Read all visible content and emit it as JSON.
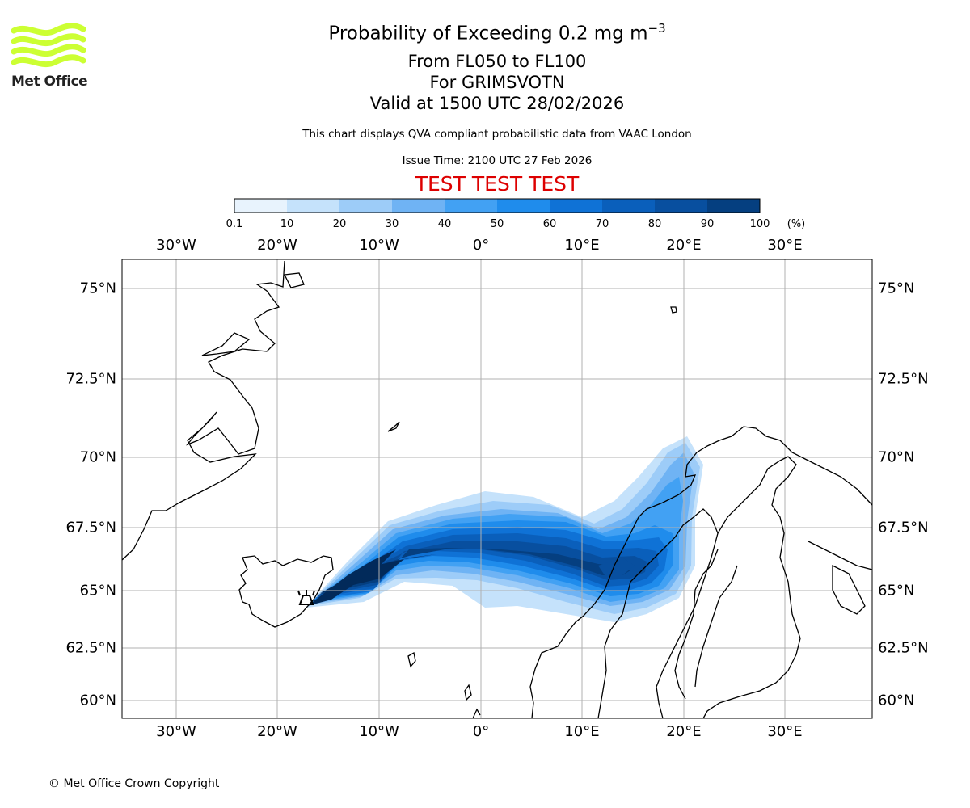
{
  "header": {
    "title": "Probability of Exceeding 0.2 mg m",
    "title_superscript": "−3",
    "line_levels": "From FL050 to FL100",
    "line_volcano": "For GRIMSVOTN",
    "line_valid": "Valid at 1500 UTC 28/02/2026",
    "description": "This chart displays QVA compliant probabilistic data from VAAC London",
    "issue_time": "Issue Time: 2100 UTC 27 Feb 2026",
    "test_banner": "TEST TEST TEST"
  },
  "logo": {
    "text": "Met Office",
    "color": "#ccff33"
  },
  "footer": {
    "copyright": "© Met Office Crown Copyright"
  },
  "colorbar": {
    "ticks": [
      "0.1",
      "10",
      "20",
      "30",
      "40",
      "50",
      "60",
      "70",
      "80",
      "90",
      "100"
    ],
    "unit": "(%)",
    "colors": [
      "#e8f3fd",
      "#c5e2fb",
      "#9dccf8",
      "#6fb3f4",
      "#42a1f3",
      "#1f8cec",
      "#0f72d6",
      "#0a5fbb",
      "#084f9f",
      "#053f80",
      "#022a5a"
    ]
  },
  "map": {
    "lon_labels": [
      "30°W",
      "20°W",
      "10°W",
      "0°",
      "10°E",
      "20°E",
      "30°E"
    ],
    "lat_labels": [
      "75°N",
      "72.5°N",
      "70°N",
      "67.5°N",
      "65°N",
      "62.5°N",
      "60°N"
    ],
    "source_marker": "GRIMSVOTN volcano"
  }
}
